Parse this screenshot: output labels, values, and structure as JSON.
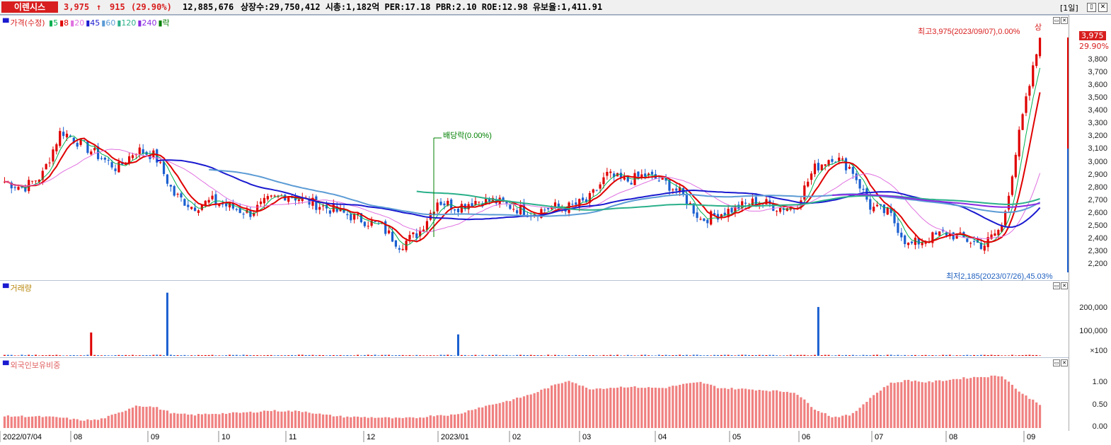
{
  "header": {
    "stock_name": "이렌시스",
    "price": "3,975",
    "change_arrow": "↑",
    "change": "915",
    "change_pct": "(29.90%)",
    "volume": "12,885,676",
    "stats": "상장수:29,750,412 시총:1,182억 PER:17.18 PBR:2.10 ROE:12.98 유보율:1,411.91",
    "period": "[1일]",
    "min_btn": "▯",
    "close_btn": "✕"
  },
  "price_pane": {
    "legend_prefix": "가격(수정)",
    "ma_legend": [
      {
        "label": "5",
        "color": "#00b050"
      },
      {
        "label": "8",
        "color": "#e00000"
      },
      {
        "label": "20",
        "color": "#e070e0"
      },
      {
        "label": "45",
        "color": "#1a1ad0"
      },
      {
        "label": "60",
        "color": "#5b9bd5"
      },
      {
        "label": "120",
        "color": "#2ab08a"
      },
      {
        "label": "240",
        "color": "#8a2be2"
      },
      {
        "label": "락",
        "color": "#008000"
      }
    ],
    "annot_high": "최고3,975(2023/09/07),0.00%",
    "annot_low": "최저2,185(2023/07/26),45.03%",
    "annot_dividend": "배당락(0.00%)",
    "annot_upper": "상",
    "current_price_tag": "3,975",
    "current_pct_tag": "29.90%",
    "yticks": [
      "3,800",
      "3,700",
      "3,600",
      "3,500",
      "3,400",
      "3,300",
      "3,200",
      "3,100",
      "3,000",
      "2,900",
      "2,800",
      "2,700",
      "2,600",
      "2,500",
      "2,400",
      "2,300",
      "2,200"
    ]
  },
  "volume_pane": {
    "label": "거래량",
    "yticks": [
      "200,000",
      "100,000",
      "×100"
    ]
  },
  "foreign_pane": {
    "label": "외국인보유비중",
    "yticks": [
      "1.00",
      "0.50",
      "0.00"
    ]
  },
  "x_axis": [
    "2022/07/04",
    "08",
    "09",
    "10",
    "11",
    "12",
    "2023/01",
    "02",
    "03",
    "04",
    "05",
    "06",
    "07",
    "08",
    "09"
  ],
  "chart_data": {
    "type": "candlestick",
    "price_range": [
      2185,
      3975
    ],
    "key_points": [
      {
        "date": "2023/07/26",
        "label": "low",
        "value": 2185
      },
      {
        "date": "2023/09/07",
        "label": "high",
        "value": 3975
      }
    ],
    "last_close": 3975,
    "price_trend": [
      2850,
      2800,
      2900,
      3250,
      3150,
      3050,
      2950,
      3100,
      3050,
      2750,
      2650,
      2700,
      2650,
      2600,
      2700,
      2750,
      2700,
      2650,
      2600,
      2550,
      2500,
      2350,
      2450,
      2700,
      2650,
      2700,
      2700,
      2650,
      2600,
      2650,
      2650,
      2700,
      2900,
      2850,
      2900,
      2850,
      2750,
      2550,
      2600,
      2650,
      2700,
      2650,
      2650,
      2950,
      3050,
      2950,
      2650,
      2600,
      2350,
      2400,
      2450,
      2400,
      2350,
      2500,
      3300,
      3975
    ],
    "volume_ylim": [
      0,
      270000
    ],
    "volume_spikes": [
      {
        "month": "08",
        "value": 98000
      },
      {
        "month": "2023/01",
        "value": 90000
      },
      {
        "month": "06",
        "value": 205000
      },
      {
        "month": "09",
        "value": 265000
      }
    ],
    "foreign_ratio_ylim": [
      0,
      1.3
    ],
    "foreign_ratio": [
      0.27,
      0.27,
      0.26,
      0.24,
      0.18,
      0.19,
      0.33,
      0.52,
      0.48,
      0.33,
      0.3,
      0.33,
      0.34,
      0.36,
      0.4,
      0.39,
      0.38,
      0.3,
      0.26,
      0.25,
      0.24,
      0.22,
      0.24,
      0.3,
      0.3,
      0.45,
      0.55,
      0.65,
      0.78,
      0.95,
      1.1,
      0.9,
      0.92,
      0.95,
      0.93,
      0.92,
      1.0,
      1.05,
      0.92,
      0.9,
      0.88,
      0.85,
      0.82,
      0.45,
      0.25,
      0.3,
      0.7,
      1.02,
      1.1,
      1.05,
      1.1,
      1.15,
      1.18,
      1.2,
      0.8,
      0.55
    ]
  }
}
